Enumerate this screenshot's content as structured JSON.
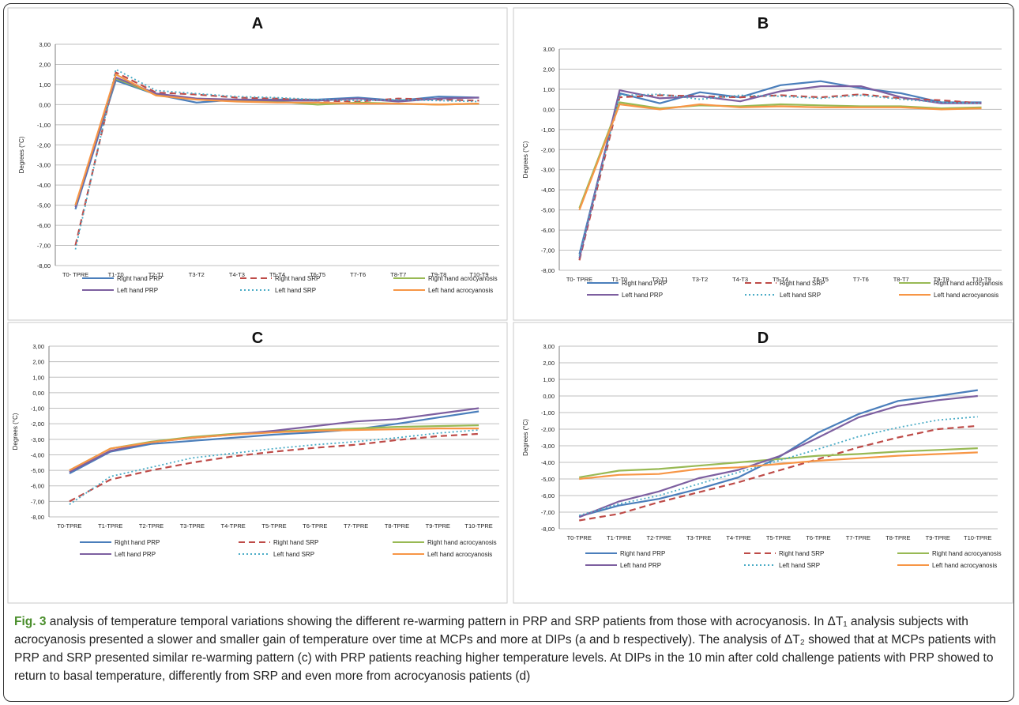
{
  "caption": {
    "lead": "Fig. 3",
    "text": " analysis of temperature temporal variations showing the different re-warming pattern in PRP and SRP patients from those with acrocyanosis. In ΔT₁ analysis subjects with acrocyanosis presented a slower and smaller gain of temperature over time at MCPs and more at DIPs (a and b respectively). The analysis of ΔT₂ showed that at MCPs patients with PRP and SRP presented similar re-warming pattern (c) with PRP patients reaching higher temperature levels. At DIPs in the 10 min after cold challenge patients with PRP showed to return to basal temperature, differently from SRP and even more from acrocyanosis patients (d)"
  },
  "styles": {
    "series_colors": [
      "#4a7ebb",
      "#be4b48",
      "#98b954",
      "#7d5fa0",
      "#4bacc6",
      "#f79646"
    ],
    "series_dash": [
      "solid",
      "dashed",
      "solid",
      "solid",
      "dotted",
      "solid"
    ]
  },
  "chart_data": [
    {
      "title": "A",
      "type": "line",
      "ylabel": "Degrees (°C)",
      "ylim": [
        -8,
        3
      ],
      "yticks": [
        "3,00",
        "2,00",
        "1,00",
        "0,00",
        "-1,00",
        "-2,00",
        "-3,00",
        "-4,00",
        "-5,00",
        "-6,00",
        "-7,00",
        "-8,00"
      ],
      "categories": [
        "T0- TPRE",
        "T1-T0",
        "T2-T1",
        "T3-T2",
        "T4-T3",
        "T5-T4",
        "T6-T5",
        "T7-T6",
        "T8-T7",
        "T9-T8",
        "T10-T9"
      ],
      "legend_position": "bottom",
      "series": [
        {
          "name": "Right hand PRP",
          "values": [
            -5.2,
            1.2,
            0.5,
            0.1,
            0.25,
            0.25,
            0.25,
            0.35,
            0.2,
            0.4,
            0.35
          ]
        },
        {
          "name": "Right hand SRP",
          "values": [
            -7.0,
            1.6,
            0.6,
            0.5,
            0.35,
            0.3,
            0.2,
            0.15,
            0.3,
            0.25,
            0.2
          ]
        },
        {
          "name": "Right hand acrocyanosis",
          "values": [
            -5.0,
            1.3,
            0.5,
            0.3,
            0.2,
            0.15,
            0.0,
            0.1,
            0.05,
            0.0,
            0.05
          ]
        },
        {
          "name": "Left hand PRP",
          "values": [
            -5.1,
            1.35,
            0.55,
            0.3,
            0.25,
            0.2,
            0.2,
            0.3,
            0.15,
            0.3,
            0.35
          ]
        },
        {
          "name": "Left hand SRP",
          "values": [
            -7.2,
            1.75,
            0.7,
            0.55,
            0.4,
            0.35,
            0.25,
            0.2,
            0.25,
            0.2,
            0.15
          ]
        },
        {
          "name": "Left hand acrocyanosis",
          "values": [
            -5.0,
            1.5,
            0.45,
            0.25,
            0.15,
            0.1,
            0.1,
            0.05,
            0.05,
            0.0,
            0.05
          ]
        }
      ]
    },
    {
      "title": "B",
      "type": "line",
      "ylabel": "Degrees (°C)",
      "ylim": [
        -8,
        3
      ],
      "yticks": [
        "3,00",
        "2,00",
        "1,00",
        "0,00",
        "-1,00",
        "-2,00",
        "-3,00",
        "-4,00",
        "-5,00",
        "-6,00",
        "-7,00",
        "-8,00"
      ],
      "categories": [
        "T0- TPRE",
        "T1-T0",
        "T2-T1",
        "T3-T2",
        "T4-T3",
        "T5-T4",
        "T6-T5",
        "T7-T6",
        "T8-T7",
        "T9-T8",
        "T10-T9"
      ],
      "legend_position": "bottom",
      "series": [
        {
          "name": "Right hand PRP",
          "values": [
            -7.2,
            0.8,
            0.3,
            0.85,
            0.6,
            1.2,
            1.4,
            1.05,
            0.8,
            0.35,
            0.35
          ]
        },
        {
          "name": "Right hand SRP",
          "values": [
            -7.5,
            0.6,
            0.7,
            0.65,
            0.6,
            0.7,
            0.6,
            0.75,
            0.55,
            0.45,
            0.3
          ]
        },
        {
          "name": "Right hand acrocyanosis",
          "values": [
            -4.9,
            0.35,
            0.05,
            0.2,
            0.15,
            0.25,
            0.2,
            0.15,
            0.15,
            0.05,
            0.1
          ]
        },
        {
          "name": "Left hand PRP",
          "values": [
            -7.4,
            0.95,
            0.55,
            0.65,
            0.4,
            0.9,
            1.15,
            1.15,
            0.6,
            0.3,
            0.3
          ]
        },
        {
          "name": "Left hand SRP",
          "values": [
            -7.3,
            0.7,
            0.75,
            0.5,
            0.7,
            0.65,
            0.55,
            0.7,
            0.5,
            0.35,
            0.3
          ]
        },
        {
          "name": "Left hand acrocyanosis",
          "values": [
            -5.0,
            0.25,
            0.0,
            0.25,
            0.1,
            0.15,
            0.1,
            0.1,
            0.1,
            0.0,
            0.05
          ]
        }
      ]
    },
    {
      "title": "C",
      "type": "line",
      "ylabel": "Degrees (°C)",
      "ylim": [
        -8,
        3
      ],
      "yticks": [
        "3,00",
        "2,00",
        "1,00",
        "0,00",
        "-1,00",
        "-2,00",
        "-3,00",
        "-4,00",
        "-5,00",
        "-6,00",
        "-7,00",
        "-8,00"
      ],
      "categories": [
        "T0-TPRE",
        "T1-TPRE",
        "T2-TPRE",
        "T3-TPRE",
        "T4-TPRE",
        "T5-TPRE",
        "T6-TPRE",
        "T7-TPRE",
        "T8-TPRE",
        "T9-TPRE",
        "T10-TPRE"
      ],
      "legend_position": "bottom",
      "series": [
        {
          "name": "Right hand PRP",
          "values": [
            -5.2,
            -3.8,
            -3.3,
            -3.1,
            -2.9,
            -2.7,
            -2.55,
            -2.35,
            -2.0,
            -1.6,
            -1.2
          ]
        },
        {
          "name": "Right hand SRP",
          "values": [
            -7.0,
            -5.6,
            -5.0,
            -4.5,
            -4.1,
            -3.8,
            -3.55,
            -3.35,
            -3.05,
            -2.8,
            -2.65
          ]
        },
        {
          "name": "Right hand acrocyanosis",
          "values": [
            -5.0,
            -3.6,
            -3.15,
            -2.85,
            -2.65,
            -2.5,
            -2.4,
            -2.3,
            -2.2,
            -2.15,
            -2.1
          ]
        },
        {
          "name": "Left hand PRP",
          "values": [
            -5.1,
            -3.75,
            -3.2,
            -2.9,
            -2.7,
            -2.45,
            -2.15,
            -1.85,
            -1.7,
            -1.35,
            -1.0
          ]
        },
        {
          "name": "Left hand SRP",
          "values": [
            -7.2,
            -5.4,
            -4.8,
            -4.2,
            -3.9,
            -3.6,
            -3.35,
            -3.15,
            -2.9,
            -2.6,
            -2.4
          ]
        },
        {
          "name": "Left hand acrocyanosis",
          "values": [
            -5.0,
            -3.6,
            -3.2,
            -2.9,
            -2.7,
            -2.55,
            -2.45,
            -2.4,
            -2.35,
            -2.3,
            -2.3
          ]
        }
      ]
    },
    {
      "title": "D",
      "type": "line",
      "ylabel": "Degrees (°C)",
      "ylim": [
        -8,
        3
      ],
      "yticks": [
        "3,00",
        "2,00",
        "1,00",
        "0,00",
        "-1,00",
        "-2,00",
        "-3,00",
        "-4,00",
        "-5,00",
        "-6,00",
        "-7,00",
        "-8,00"
      ],
      "categories": [
        "T0-TPRE",
        "T1-TPRE",
        "T2-TPRE",
        "T3-TPRE",
        "T4-TPRE",
        "T5-TPRE",
        "T6-TPRE",
        "T7-TPRE",
        "T8-TPRE",
        "T9-TPRE",
        "T10-TPRE"
      ],
      "legend_position": "bottom",
      "series": [
        {
          "name": "Right hand PRP",
          "values": [
            -7.25,
            -6.6,
            -6.2,
            -5.6,
            -4.9,
            -3.7,
            -2.2,
            -1.1,
            -0.3,
            0.0,
            0.35
          ]
        },
        {
          "name": "Right hand SRP",
          "values": [
            -7.5,
            -7.1,
            -6.4,
            -5.8,
            -5.2,
            -4.5,
            -3.8,
            -3.1,
            -2.5,
            -2.0,
            -1.8
          ]
        },
        {
          "name": "Right hand acrocyanosis",
          "values": [
            -4.9,
            -4.5,
            -4.4,
            -4.2,
            -4.0,
            -3.8,
            -3.6,
            -3.5,
            -3.35,
            -3.25,
            -3.15
          ]
        },
        {
          "name": "Left hand PRP",
          "values": [
            -7.3,
            -6.35,
            -5.75,
            -4.95,
            -4.45,
            -3.65,
            -2.5,
            -1.3,
            -0.6,
            -0.25,
            0.0
          ]
        },
        {
          "name": "Left hand SRP",
          "values": [
            -7.2,
            -6.5,
            -6.0,
            -5.3,
            -4.6,
            -3.9,
            -3.2,
            -2.45,
            -1.9,
            -1.45,
            -1.25
          ]
        },
        {
          "name": "Left hand acrocyanosis",
          "values": [
            -5.0,
            -4.75,
            -4.7,
            -4.4,
            -4.3,
            -4.1,
            -3.9,
            -3.75,
            -3.6,
            -3.5,
            -3.4
          ]
        }
      ]
    }
  ]
}
